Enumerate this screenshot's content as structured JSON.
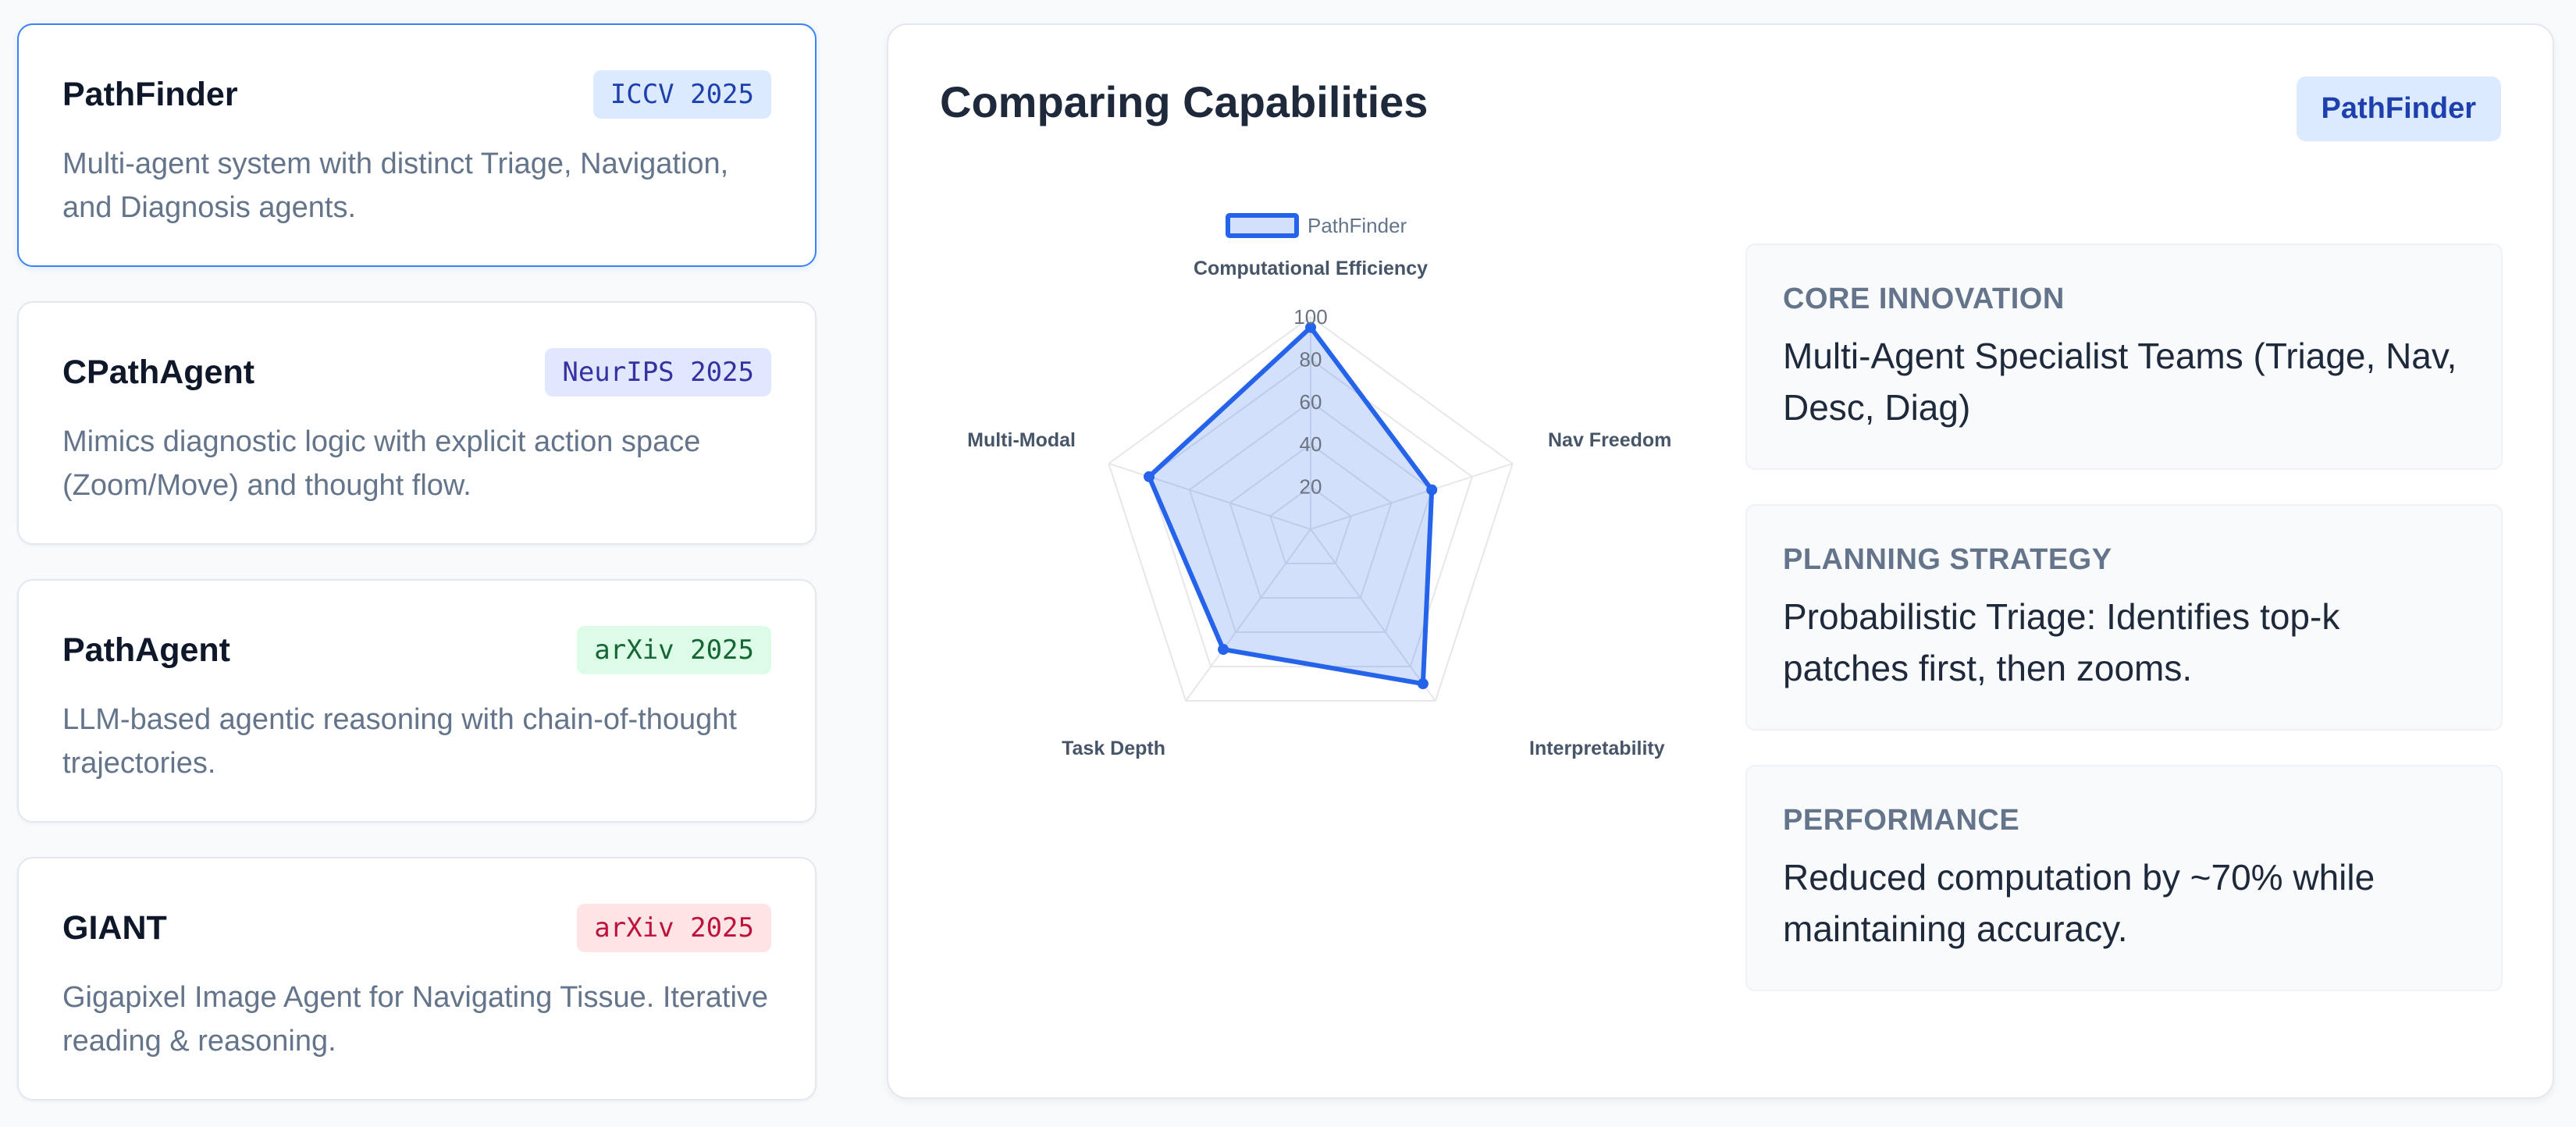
{
  "cards": [
    {
      "title": "PathFinder",
      "badge": "ICCV 2025",
      "desc": "Multi-agent system with distinct Triage, Navigation, and Diagnosis agents.",
      "badge_bg": "#dbeafe",
      "badge_fg": "#1e40af"
    },
    {
      "title": "CPathAgent",
      "badge": "NeurIPS 2025",
      "desc": "Mimics diagnostic logic with explicit action space (Zoom/Move) and thought flow.",
      "badge_bg": "#e0e7ff",
      "badge_fg": "#3730a3"
    },
    {
      "title": "PathAgent",
      "badge": "arXiv 2025",
      "desc": "LLM-based agentic reasoning with chain-of-thought trajectories.",
      "badge_bg": "#dcfce7",
      "badge_fg": "#166534"
    },
    {
      "title": "GIANT",
      "badge": "arXiv 2025",
      "desc": "Gigapixel Image Agent for Navigating Tissue. Iterative reading & reasoning.",
      "badge_bg": "#ffe4e6",
      "badge_fg": "#be123c"
    }
  ],
  "panel": {
    "title": "Comparing Capabilities",
    "selected": "PathFinder"
  },
  "info": [
    {
      "label": "CORE INNOVATION",
      "text": "Multi-Agent Specialist Teams (Triage, Nav, Desc, Diag)"
    },
    {
      "label": "PLANNING STRATEGY",
      "text": "Probabilistic Triage: Identifies top-k patches first, then zooms."
    },
    {
      "label": "PERFORMANCE",
      "text": "Reduced computation by ~70% while maintaining accuracy."
    }
  ],
  "chart_data": {
    "type": "radar",
    "categories": [
      "Computational Efficiency",
      "Nav Freedom",
      "Interpretability",
      "Task Depth",
      "Multi-Modal"
    ],
    "series": [
      {
        "name": "PathFinder",
        "values": [
          95,
          60,
          90,
          70,
          80
        ]
      }
    ],
    "ticks": [
      "20",
      "40",
      "60",
      "80",
      "100"
    ],
    "rlim": [
      0,
      100
    ],
    "legend": "top",
    "colors": {
      "line": "#2563eb",
      "fill": "#2563eb",
      "grid": "#e5e7eb"
    }
  }
}
